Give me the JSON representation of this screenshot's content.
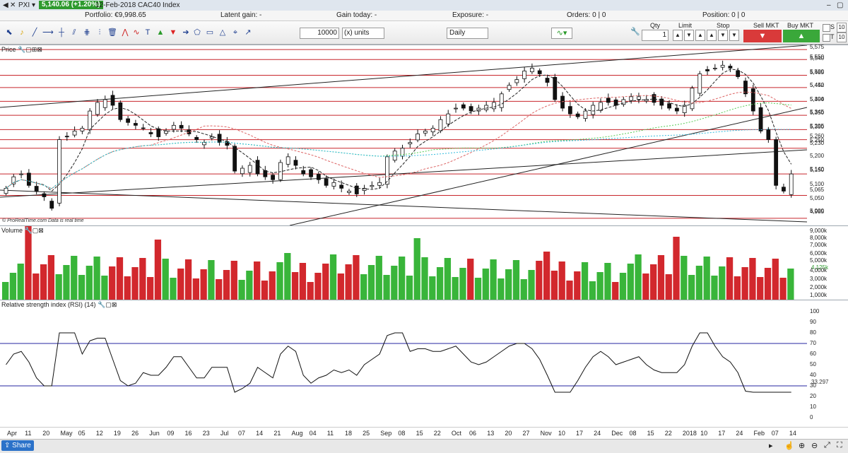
{
  "titlebar": {
    "symbol": "PXI",
    "price_change": "5,140.06 (+1.20%)",
    "date_name": "12-Feb-2018 CAC40 Index"
  },
  "infobar": {
    "portfolio": "Portfolio: €9,998.65",
    "latent_gain": "Latent gain: -",
    "gain_today": "Gain today: -",
    "exposure": "Exposure: -",
    "orders": "Orders: 0 | 0",
    "position": "Position: 0 | 0"
  },
  "toolbar": {
    "quantity_value": "10000",
    "units_select": "(x) units",
    "timeframe_select": "Daily"
  },
  "order_panel": {
    "qty_label": "Qty",
    "qty_value": "1",
    "limit_label": "Limit",
    "stop_label": "Stop",
    "sell_label": "Sell MKT",
    "buy_label": "Buy MKT",
    "s_label": "S",
    "t_label": "T",
    "s_value": "10",
    "t_value": "10"
  },
  "panels": {
    "price_title": "Price",
    "volume_title": "Volume",
    "rsi_title": "Relative strength index (RSI) (14)",
    "copyright": "© ProRealTime.com  Data is real time"
  },
  "price_axis": [
    "5,575",
    "5,540",
    "5,550",
    "5,485",
    "5,500",
    "5,442",
    "5,450",
    "5,394",
    "5,400",
    "5,345",
    "5,350",
    "5,295",
    "5,300",
    "5,260",
    "5,250",
    "5,230",
    "5,200",
    "5,150",
    "5,140",
    "5,100",
    "5,065",
    "5,050",
    "5,000",
    "4,985"
  ],
  "volume_axis": [
    "9,000k",
    "8,000k",
    "7,000k",
    "6,000k",
    "5,000k",
    "4,125k",
    "4,000k",
    "3,000k",
    "2,000k",
    "1,000k"
  ],
  "rsi_axis": [
    "100",
    "90",
    "80",
    "70",
    "60",
    "50",
    "40",
    "33.297",
    "30",
    "20",
    "10",
    "0"
  ],
  "x_axis": [
    "Apr",
    "11",
    "20",
    "May",
    "05",
    "12",
    "19",
    "26",
    "Jun",
    "09",
    "16",
    "23",
    "Jul",
    "07",
    "14",
    "21",
    "Aug",
    "04",
    "11",
    "18",
    "25",
    "Sep",
    "08",
    "15",
    "22",
    "Oct",
    "06",
    "13",
    "20",
    "27",
    "Nov",
    "10",
    "17",
    "24",
    "Dec",
    "08",
    "15",
    "22",
    "2018",
    "10",
    "17",
    "24",
    "Feb",
    "07",
    "14"
  ],
  "bottombar": {
    "share_label": "Share"
  },
  "colors": {
    "up": "#39b53a",
    "down": "#d2282d",
    "hline": "#c8262c",
    "rsi_band": "#2424a0",
    "rsi_fill": "#c9908f"
  },
  "chart_data": {
    "type": "candlestick",
    "series_approx_close": [
      5090,
      5130,
      5140,
      5100,
      5080,
      5060,
      5020,
      5260,
      5270,
      5290,
      5300,
      5360,
      5390,
      5400,
      5380,
      5330,
      5320,
      5310,
      5300,
      5280,
      5270,
      5290,
      5310,
      5300,
      5280,
      5260,
      5250,
      5270,
      5250,
      5240,
      5150,
      5160,
      5170,
      5140,
      5130,
      5120,
      5180,
      5200,
      5170,
      5140,
      5130,
      5120,
      5100,
      5110,
      5090,
      5080,
      5070,
      5090,
      5100,
      5110,
      5200,
      5220,
      5230,
      5250,
      5280,
      5290,
      5300,
      5330,
      5350,
      5370,
      5370,
      5360,
      5370,
      5380,
      5390,
      5420,
      5450,
      5470,
      5500,
      5510,
      5490,
      5460,
      5400,
      5370,
      5350,
      5340,
      5360,
      5380,
      5390,
      5390,
      5380,
      5400,
      5410,
      5410,
      5400,
      5390,
      5380,
      5370,
      5360,
      5380,
      5440,
      5490,
      5500,
      5510,
      5520,
      5510,
      5480,
      5420,
      5360,
      5290,
      5260,
      5100,
      5080,
      5140
    ],
    "rsi_last": 33.297,
    "volume_last_k": 4125
  }
}
